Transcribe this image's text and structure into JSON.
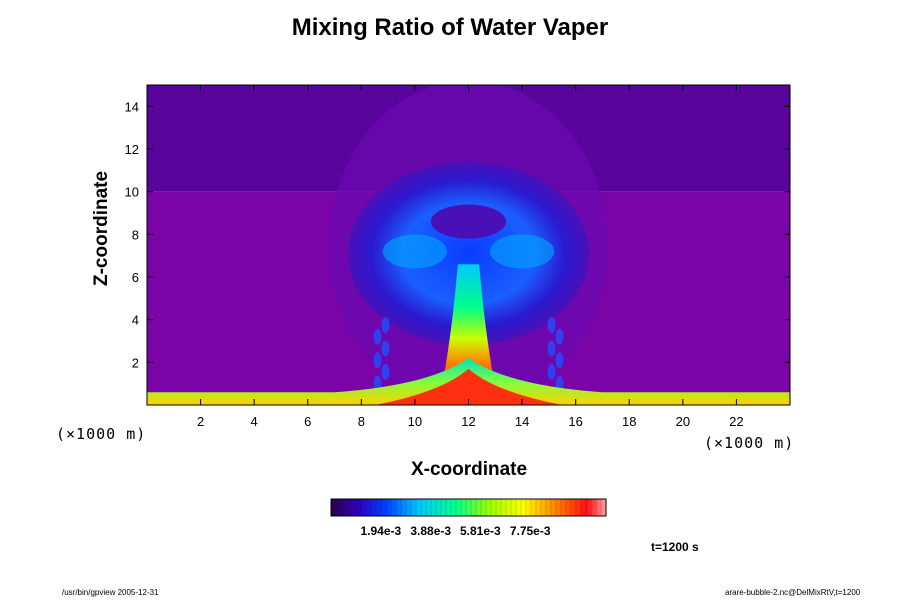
{
  "chart_data": {
    "type": "heatmap",
    "title": "Mixing Ratio of Water Vaper",
    "xlabel": "X-coordinate",
    "ylabel": "Z-coordinate",
    "x_unit": "(×1000 m)",
    "y_unit": "(×1000 m)",
    "xlim": [
      0,
      24
    ],
    "ylim": [
      0,
      15
    ],
    "x_ticks": [
      2,
      4,
      6,
      8,
      10,
      12,
      14,
      16,
      18,
      20,
      22
    ],
    "y_ticks": [
      2,
      4,
      6,
      8,
      10,
      12,
      14
    ],
    "colorbar": {
      "tick_labels": [
        "1.94e-3",
        "3.88e-3",
        "5.81e-3",
        "7.75e-3"
      ],
      "tick_values": [
        0.00194,
        0.00388,
        0.00581,
        0.00775
      ],
      "vmin": 0.0,
      "vmax": 0.0107
    },
    "features": {
      "plume_center_x": 12,
      "plume_cap_top_z": 9.5,
      "plume_cap_half_width_x": 4.5,
      "surface_layer_top_z": 0.6,
      "background_layer_boundary_z": 10
    },
    "colors": {
      "background_upper": "#5a049e",
      "background_lower": "#7a04a8",
      "min": "#2a004a",
      "max": "#ff9999"
    }
  },
  "annotations": {
    "time": "t=1200 s",
    "footer_left": "/usr/bin/gpview 2005-12-31",
    "footer_right": "arare-bubble-2.nc@DelMixRtV,t=1200"
  }
}
